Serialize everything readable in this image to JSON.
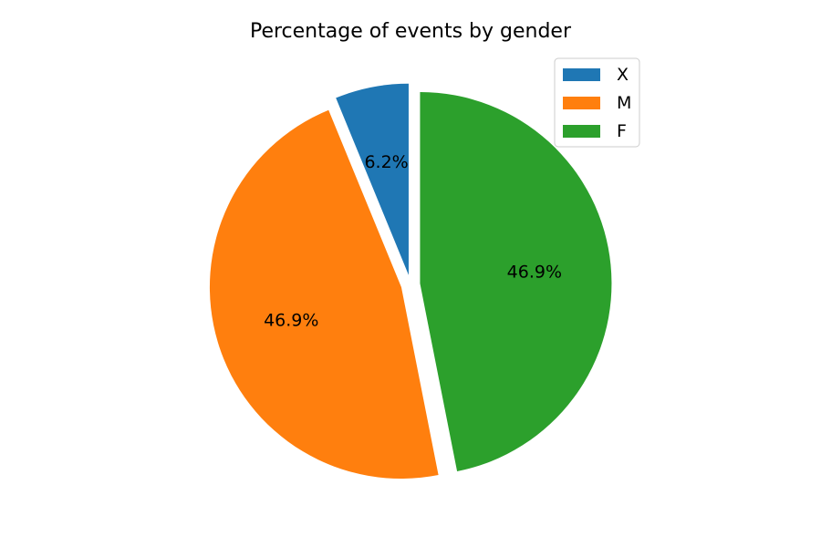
{
  "chart_data": {
    "type": "pie",
    "title": "Percentage of events by gender",
    "slices": [
      {
        "label": "X",
        "value": 6.2,
        "display": "6.2%",
        "color": "#1f77b4",
        "exploded": true
      },
      {
        "label": "M",
        "value": 46.9,
        "display": "46.9%",
        "color": "#ff7f0e",
        "exploded": true
      },
      {
        "label": "F",
        "value": 46.9,
        "display": "46.9%",
        "color": "#2ca02c",
        "exploded": true
      }
    ],
    "legend": {
      "placement": "top-right",
      "entries": [
        "X",
        "M",
        "F"
      ]
    }
  }
}
